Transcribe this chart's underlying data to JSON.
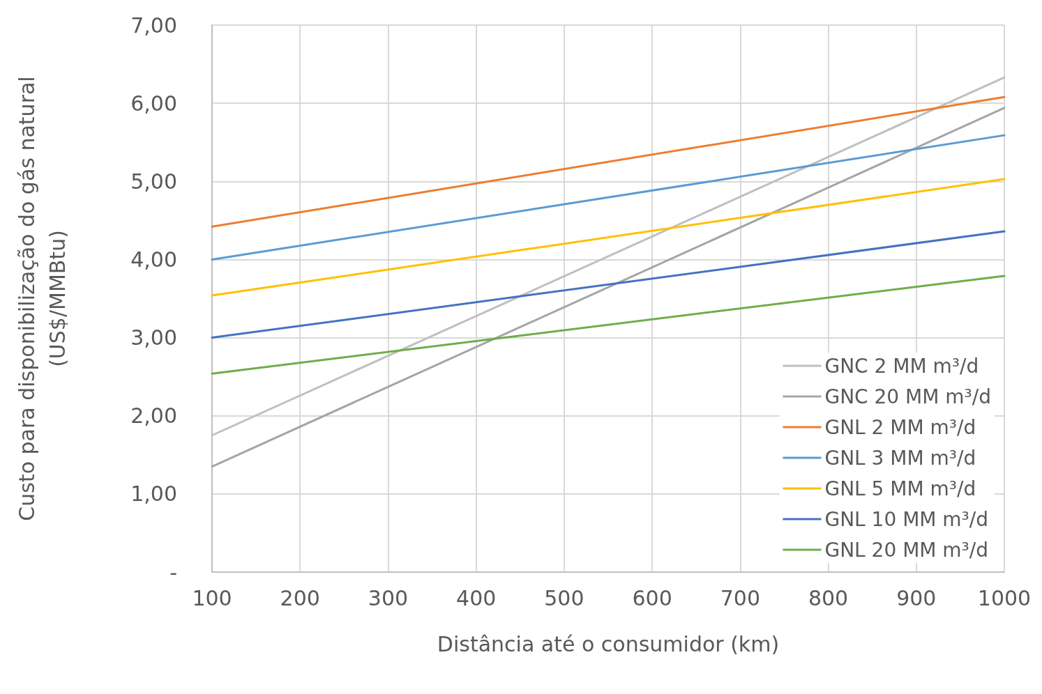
{
  "chart_data": {
    "type": "line",
    "xlabel": "Distância até o consumidor (km)",
    "ylabel": "Custo para disponibilização do gás natural\n(US$/MMBtu)",
    "x": [
      100,
      1000
    ],
    "series": [
      {
        "name": "GNC 2 MM m³/d",
        "color": "#bfbfbf",
        "values": [
          1.75,
          6.33
        ]
      },
      {
        "name": "GNC 20 MM m³/d",
        "color": "#a5a5a5",
        "values": [
          1.35,
          5.94
        ]
      },
      {
        "name": "GNL 2 MM m³/d",
        "color": "#ed7d31",
        "values": [
          4.42,
          6.08
        ]
      },
      {
        "name": "GNL 3 MM m³/d",
        "color": "#5b9bd5",
        "values": [
          4.0,
          5.59
        ]
      },
      {
        "name": "GNL 5 MM m³/d",
        "color": "#ffc000",
        "values": [
          3.54,
          5.03
        ]
      },
      {
        "name": "GNL 10 MM m³/d",
        "color": "#4472c4",
        "values": [
          3.0,
          4.36
        ]
      },
      {
        "name": "GNL 20 MM m³/d",
        "color": "#70ad47",
        "values": [
          2.54,
          3.79
        ]
      }
    ],
    "xlim": [
      100,
      1000
    ],
    "xticks": [
      100,
      200,
      300,
      400,
      500,
      600,
      700,
      800,
      900,
      1000
    ],
    "ylim": [
      0,
      7
    ],
    "yticks": [
      {
        "value": 0,
        "label": "-"
      },
      {
        "value": 1,
        "label": "1,00"
      },
      {
        "value": 2,
        "label": "2,00"
      },
      {
        "value": 3,
        "label": "3,00"
      },
      {
        "value": 4,
        "label": "4,00"
      },
      {
        "value": 5,
        "label": "5,00"
      },
      {
        "value": 6,
        "label": "6,00"
      },
      {
        "value": 7,
        "label": "7,00"
      }
    ],
    "grid": true,
    "legend": "bottom right",
    "marker": "none",
    "line_style": "solid"
  }
}
